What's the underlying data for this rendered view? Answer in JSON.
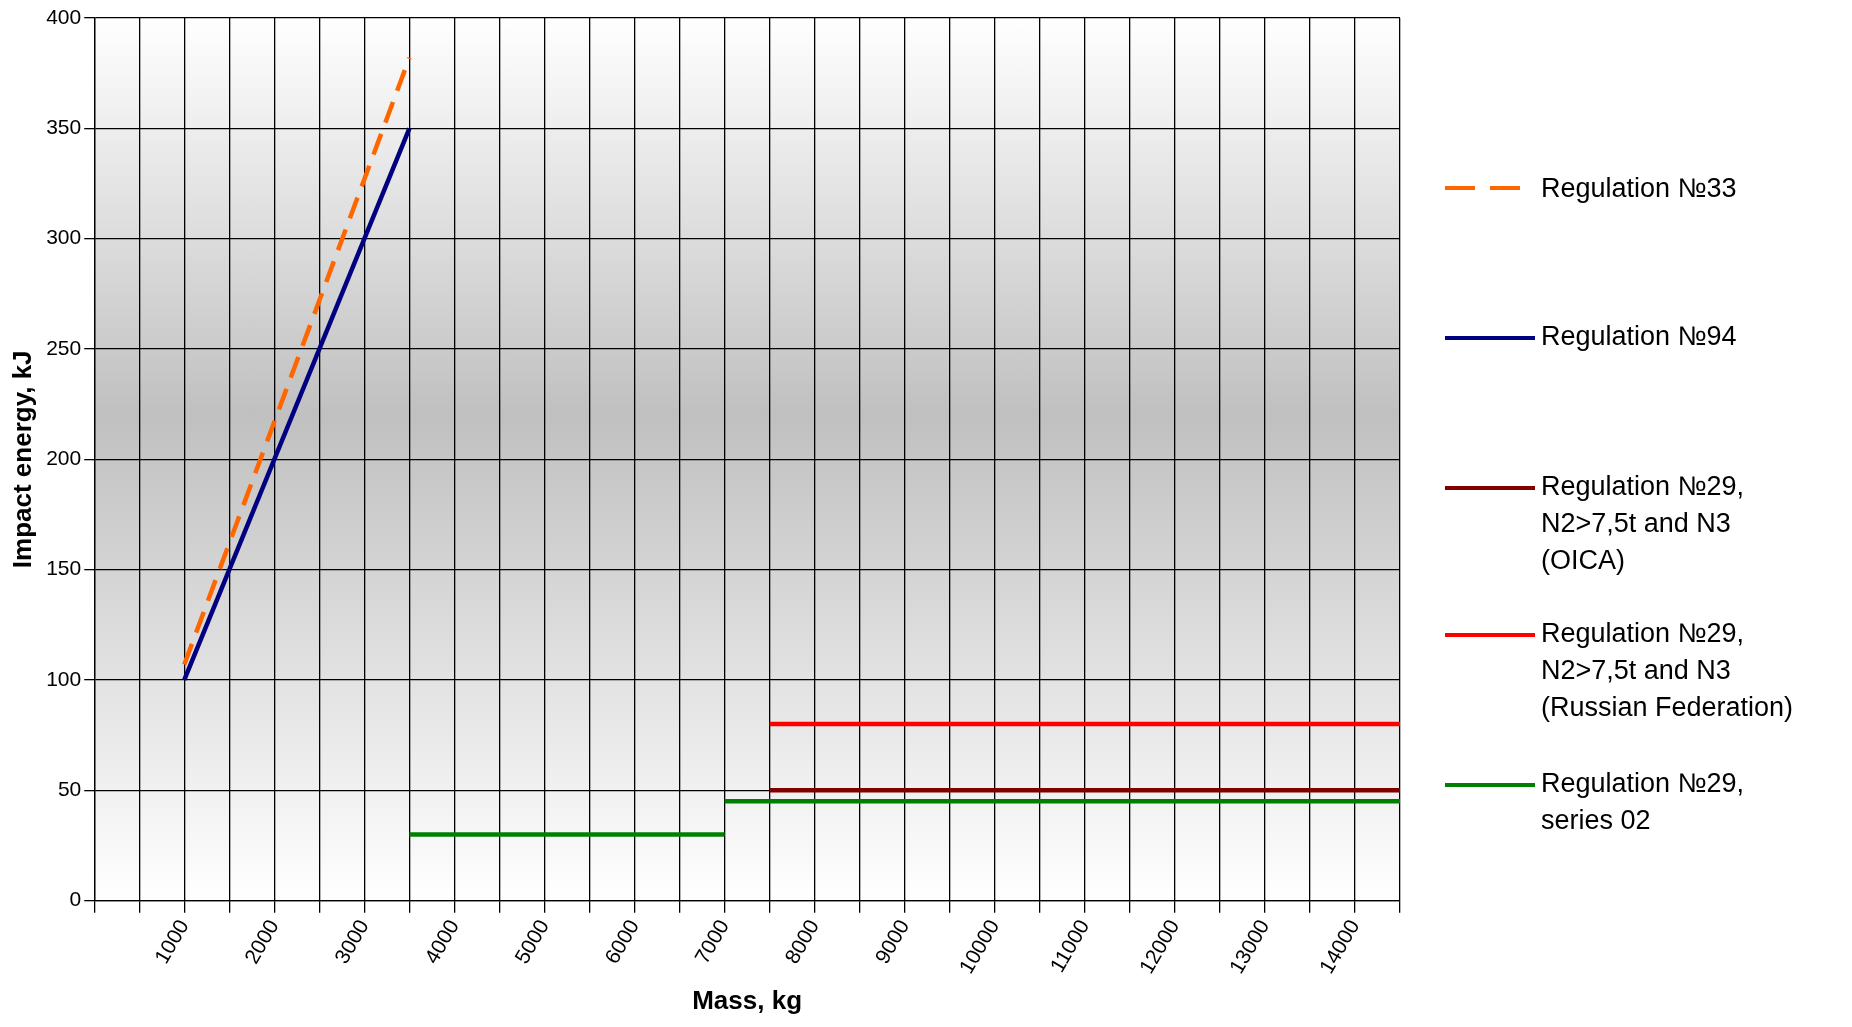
{
  "chart_data": {
    "type": "line",
    "xlabel": "Mass, kg",
    "ylabel": "Impact energy, kJ",
    "xlim": [
      0,
      14500
    ],
    "xticks": [
      {
        "value": 0,
        "label": null
      },
      {
        "value": 500,
        "label": null
      },
      1000,
      {
        "value": 1500,
        "label": null
      },
      2000,
      {
        "value": 2500,
        "label": null
      },
      3000,
      {
        "value": 3500,
        "label": null
      },
      4000,
      {
        "value": 4500,
        "label": null
      },
      5000,
      {
        "value": 5500,
        "label": null
      },
      6000,
      {
        "value": 6500,
        "label": null
      },
      7000,
      {
        "value": 7500,
        "label": null
      },
      8000,
      {
        "value": 8500,
        "label": null
      },
      9000,
      {
        "value": 9500,
        "label": null
      },
      10000,
      {
        "value": 10500,
        "label": null
      },
      11000,
      {
        "value": 11500,
        "label": null
      },
      12000,
      {
        "value": 12500,
        "label": null
      },
      13000,
      {
        "value": 13500,
        "label": null
      },
      14000,
      {
        "value": 14500,
        "label": null
      }
    ],
    "ylim": [
      0,
      400
    ],
    "yticks": [
      0,
      50,
      100,
      150,
      200,
      250,
      300,
      350,
      400
    ],
    "grid": true,
    "legend": "right",
    "marker": "none",
    "series": [
      {
        "name": "Regulation №33",
        "color": "#ff6600",
        "line_style": "dashed",
        "x": [
          1000,
          3500
        ],
        "values": [
          107,
          382
        ]
      },
      {
        "name": "Regulation №94",
        "color": "#000080",
        "line_style": "solid",
        "x": [
          1000,
          3500
        ],
        "values": [
          100,
          350
        ]
      },
      {
        "name": "Regulation №29, N2>7,5t and N3 (OICA)",
        "color": "#800000",
        "line_style": "solid",
        "x": [
          7500,
          14500
        ],
        "values": [
          50,
          50
        ]
      },
      {
        "name": "Regulation №29, N2>7,5t and N3 (Russian Federation)",
        "color": "#ff0000",
        "line_style": "solid",
        "x": [
          7500,
          14500
        ],
        "values": [
          80,
          80
        ]
      },
      {
        "name": "Regulation №29, series 02",
        "color": "#008000",
        "line_style": "solid",
        "x": [
          3500,
          7000
        ],
        "values": [
          30,
          30
        ]
      },
      {
        "color": "#008000",
        "line_style": "solid",
        "x": [
          7000,
          14500
        ],
        "values": [
          45,
          45
        ]
      }
    ]
  }
}
